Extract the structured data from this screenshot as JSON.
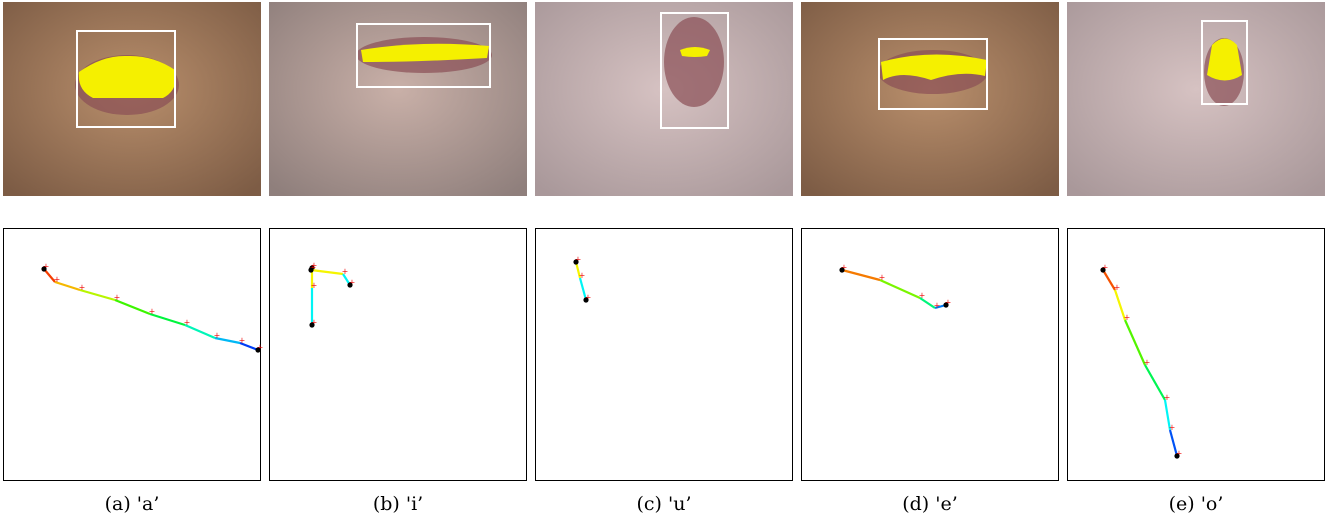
{
  "panels": [
    {
      "caption": "(a) 'a’"
    },
    {
      "caption": "(b) 'i’"
    },
    {
      "caption": "(c) 'u’"
    },
    {
      "caption": "(d) 'e’"
    },
    {
      "caption": "(e) 'o’"
    }
  ]
}
